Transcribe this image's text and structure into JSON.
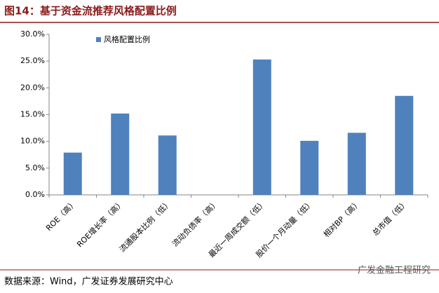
{
  "header": {
    "title": "图14：基于资金流推荐风格配置比例"
  },
  "chart_data": {
    "type": "bar",
    "categories": [
      "ROE（高）",
      "ROE增长率（高）",
      "流通股本比例（低）",
      "流动负债率（高）",
      "最近一周成交额（低）",
      "股价一个月动量（低）",
      "相对BP（高）",
      "总市值（低）"
    ],
    "series": [
      {
        "name": "风格配置比例",
        "color": "#4f81bd",
        "values": [
          7.9,
          15.2,
          11.1,
          0,
          25.3,
          10.1,
          11.6,
          18.5
        ]
      }
    ],
    "ylim": [
      0,
      30
    ],
    "yticks": [
      {
        "value": 0,
        "label": "0.0%"
      },
      {
        "value": 5,
        "label": "5.0%"
      },
      {
        "value": 10,
        "label": "10.0%"
      },
      {
        "value": 15,
        "label": "15.0%"
      },
      {
        "value": 20,
        "label": "20.0%"
      },
      {
        "value": 25,
        "label": "25.0%"
      },
      {
        "value": 30,
        "label": "30.0%"
      }
    ],
    "grid": false,
    "legend": "top-left"
  },
  "footer": {
    "source": "数据来源：Wind，广发证券发展研究中心",
    "watermark": "广发金融工程研究"
  }
}
